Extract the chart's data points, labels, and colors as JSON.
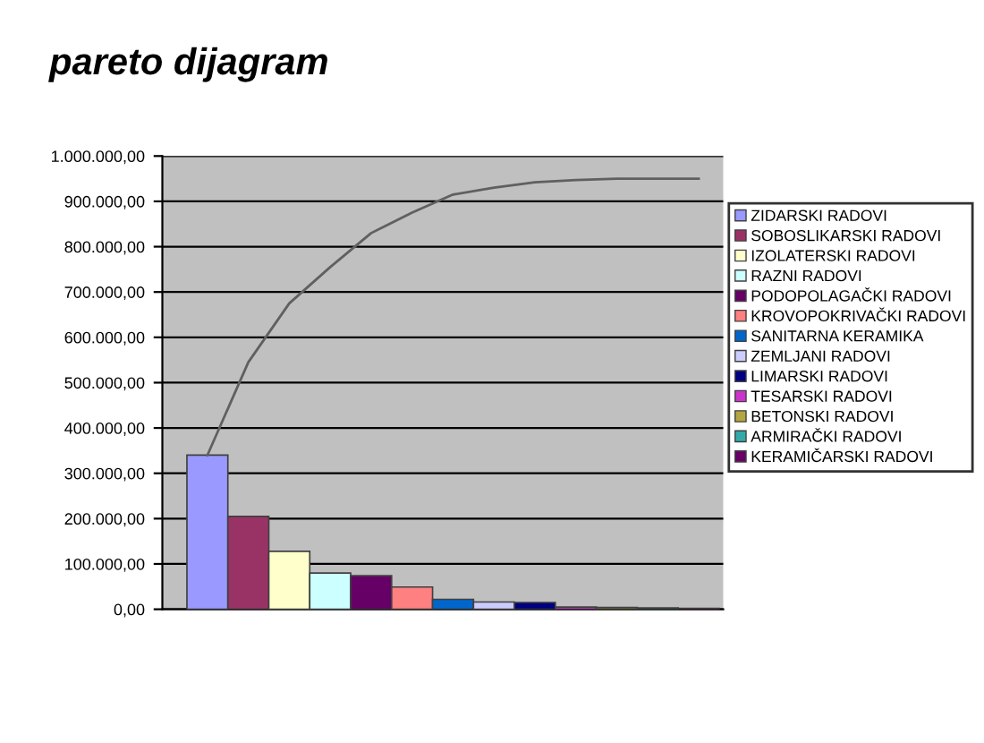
{
  "chart_data": {
    "type": "bar",
    "title": "pareto dijagram",
    "categories": [
      null,
      null,
      null,
      null,
      null,
      null,
      null,
      null,
      null,
      null,
      null,
      null,
      null
    ],
    "series": [
      {
        "name": "ZIDARSKI RADOVI",
        "color": "#9999ff",
        "values": [
          340000,
          null,
          null,
          null,
          null,
          null,
          null,
          null,
          null,
          null,
          null,
          null,
          null
        ]
      },
      {
        "name": "SOBOSLIKARSKI RADOVI",
        "color": "#993366",
        "values": [
          null,
          205000,
          null,
          null,
          null,
          null,
          null,
          null,
          null,
          null,
          null,
          null,
          null
        ]
      },
      {
        "name": "IZOLATERSKI RADOVI",
        "color": "#ffffcc",
        "values": [
          null,
          null,
          128000,
          null,
          null,
          null,
          null,
          null,
          null,
          null,
          null,
          null,
          null
        ]
      },
      {
        "name": "RAZNI RADOVI",
        "color": "#ccffff",
        "values": [
          null,
          null,
          null,
          80000,
          null,
          null,
          null,
          null,
          null,
          null,
          null,
          null,
          null
        ]
      },
      {
        "name": "PODOPOLAGAČKI RADOVI",
        "color": "#660066",
        "values": [
          null,
          null,
          null,
          null,
          74000,
          null,
          null,
          null,
          null,
          null,
          null,
          null,
          null
        ]
      },
      {
        "name": "KROVOPOKRIVAČKI RADOVI",
        "color": "#ff8080",
        "values": [
          null,
          null,
          null,
          null,
          null,
          49000,
          null,
          null,
          null,
          null,
          null,
          null,
          null
        ]
      },
      {
        "name": "SANITARNA KERAMIKA",
        "color": "#0066cc",
        "values": [
          null,
          null,
          null,
          null,
          null,
          null,
          22000,
          null,
          null,
          null,
          null,
          null,
          null
        ]
      },
      {
        "name": "ZEMLJANI RADOVI",
        "color": "#ccccff",
        "values": [
          null,
          null,
          null,
          null,
          null,
          null,
          null,
          16000,
          null,
          null,
          null,
          null,
          null
        ]
      },
      {
        "name": "LIMARSKI RADOVI",
        "color": "#000080",
        "values": [
          null,
          null,
          null,
          null,
          null,
          null,
          null,
          null,
          15000,
          null,
          null,
          null,
          null
        ]
      },
      {
        "name": "TESARSKI RADOVI",
        "color": "#cc33cc",
        "values": [
          null,
          null,
          null,
          null,
          null,
          null,
          null,
          null,
          null,
          5000,
          null,
          null,
          null
        ]
      },
      {
        "name": "BETONSKI RADOVI",
        "color": "#b3a640",
        "values": [
          null,
          null,
          null,
          null,
          null,
          null,
          null,
          null,
          null,
          null,
          4000,
          null,
          null
        ]
      },
      {
        "name": "ARMIRAČKI RADOVI",
        "color": "#33aaaa",
        "values": [
          null,
          null,
          null,
          null,
          null,
          null,
          null,
          null,
          null,
          null,
          null,
          3000,
          null
        ]
      },
      {
        "name": "KERAMIČARSKI RADOVI",
        "color": "#660066",
        "values": [
          null,
          null,
          null,
          null,
          null,
          null,
          null,
          null,
          null,
          null,
          null,
          null,
          2000
        ]
      },
      {
        "type": "line",
        "color": "#606060",
        "values": [
          340000,
          545000,
          675000,
          755000,
          830000,
          875000,
          915000,
          930000,
          942000,
          947000,
          950000,
          950000,
          950000
        ]
      }
    ],
    "ylim": [
      0,
      1000000
    ],
    "yticks": [
      {
        "value": 0,
        "label": "0,00"
      },
      {
        "value": 100000,
        "label": "100.000,00"
      },
      {
        "value": 200000,
        "label": "200.000,00"
      },
      {
        "value": 300000,
        "label": "300.000,00"
      },
      {
        "value": 400000,
        "label": "400.000,00"
      },
      {
        "value": 500000,
        "label": "500.000,00"
      },
      {
        "value": 600000,
        "label": "600.000,00"
      },
      {
        "value": 700000,
        "label": "700.000,00"
      },
      {
        "value": 800000,
        "label": "800.000,00"
      },
      {
        "value": 900000,
        "label": "900.000,00"
      },
      {
        "value": 1000000,
        "label": "1.000.000,00"
      }
    ],
    "grid": "y",
    "legend": "right",
    "marker": "none"
  }
}
